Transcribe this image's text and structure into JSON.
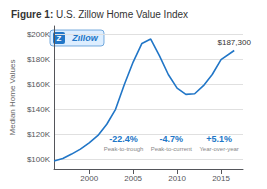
{
  "chart_data": {
    "type": "line",
    "title": "Figure 1:",
    "subtitle": " U.S. Zillow Home Value Index",
    "y_label": "Median Home Values",
    "x": [
      1996,
      1997,
      1998,
      1999,
      2000,
      2001,
      2002,
      2003,
      2004,
      2005,
      2006,
      2007,
      2008,
      2009,
      2010,
      2011,
      2012,
      2013,
      2014,
      2015,
      2016.5
    ],
    "values": [
      98500,
      100500,
      104000,
      108000,
      113000,
      119000,
      128000,
      140000,
      160000,
      178000,
      193000,
      196500,
      183000,
      168000,
      157000,
      152000,
      152500,
      159000,
      168000,
      180000,
      187300
    ],
    "color": "#2176C7",
    "xlim": [
      1996,
      2017.5
    ],
    "xticks": [
      2000,
      2005,
      2010,
      2015
    ],
    "ylim": [
      92000,
      207000
    ],
    "yticks": [
      {
        "value": 100000,
        "label": "$100K"
      },
      {
        "value": 120000,
        "label": "$120K"
      },
      {
        "value": 140000,
        "label": "$140K"
      },
      {
        "value": 160000,
        "label": "$160K"
      },
      {
        "value": 180000,
        "label": "$180K"
      },
      {
        "value": 200000,
        "label": "$200K"
      }
    ],
    "grid": true,
    "annotations": [
      {
        "text": "$187,300",
        "x": 2016.5,
        "y": 187300
      }
    ],
    "stats": [
      {
        "value": "-22.4%",
        "label": "Peak-to-trough"
      },
      {
        "value": "-4.7%",
        "label": "Peak-to-current"
      },
      {
        "value": "+5.1%",
        "label": "Year-over-year"
      }
    ],
    "logo": [
      "Z",
      "Zillow"
    ]
  }
}
